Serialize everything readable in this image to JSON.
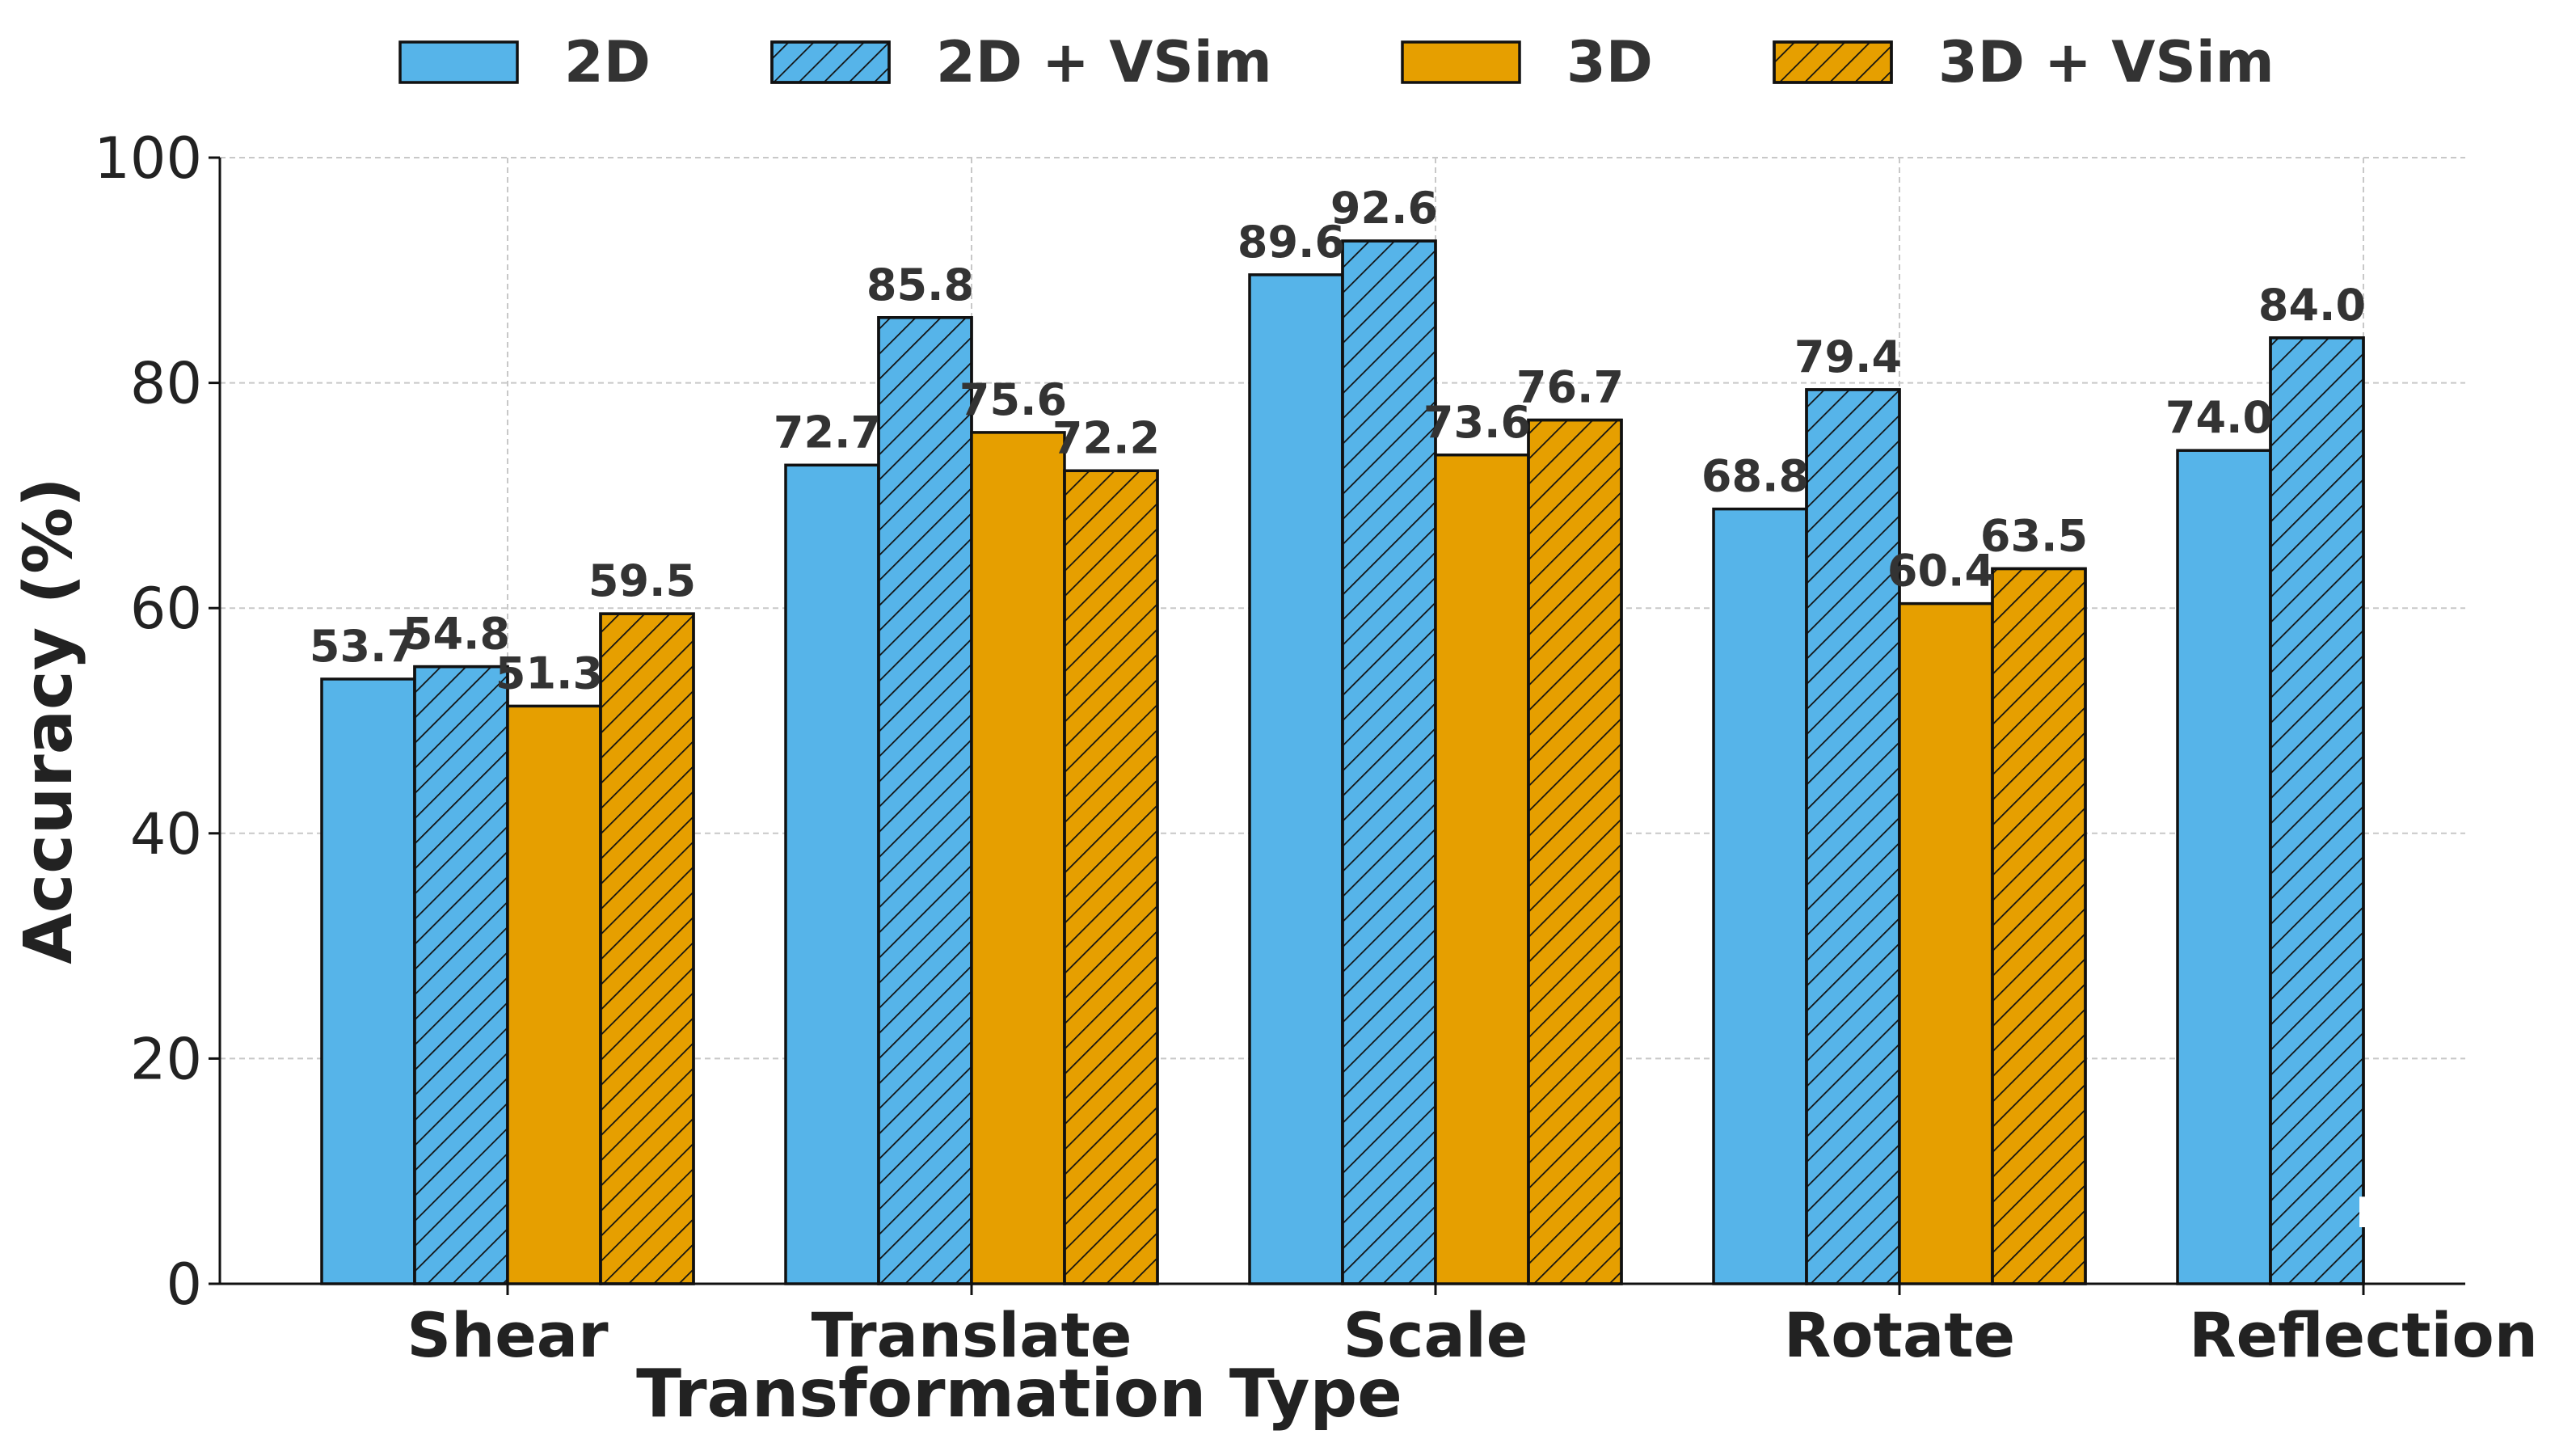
{
  "chart_data": {
    "type": "bar",
    "title": "",
    "xlabel": "Transformation Type",
    "ylabel": "Accuracy (%)",
    "ylim": [
      0,
      100
    ],
    "yticks": [
      0,
      20,
      40,
      60,
      80,
      100
    ],
    "grid": true,
    "legend_position": "top",
    "categories": [
      "Shear",
      "Translate",
      "Scale",
      "Rotate",
      "Reflection"
    ],
    "series": [
      {
        "name": "2D",
        "color": "#56B4E9",
        "hatch": false,
        "values": [
          53.7,
          72.7,
          89.6,
          68.8,
          74.0
        ],
        "labels": [
          "53.7",
          "72.7",
          "89.6",
          "68.8",
          "74.0"
        ]
      },
      {
        "name": "2D + VSim",
        "color": "#56B4E9",
        "hatch": true,
        "values": [
          54.8,
          85.8,
          92.6,
          79.4,
          84.0
        ],
        "labels": [
          "54.8",
          "85.8",
          "92.6",
          "79.4",
          "84.0"
        ]
      },
      {
        "name": "3D",
        "color": "#E69F00",
        "hatch": false,
        "values": [
          51.3,
          75.6,
          73.6,
          60.4,
          null
        ],
        "labels": [
          "51.3",
          "75.6",
          "73.6",
          "60.4",
          null
        ]
      },
      {
        "name": "3D + VSim",
        "color": "#E69F00",
        "hatch": true,
        "values": [
          59.5,
          72.2,
          76.7,
          63.5,
          null
        ],
        "labels": [
          "59.5",
          "72.2",
          "76.7",
          "63.5",
          null
        ]
      }
    ],
    "annotations": [
      {
        "text": "N",
        "category": "Reflection",
        "note": "partially visible white text"
      }
    ]
  }
}
